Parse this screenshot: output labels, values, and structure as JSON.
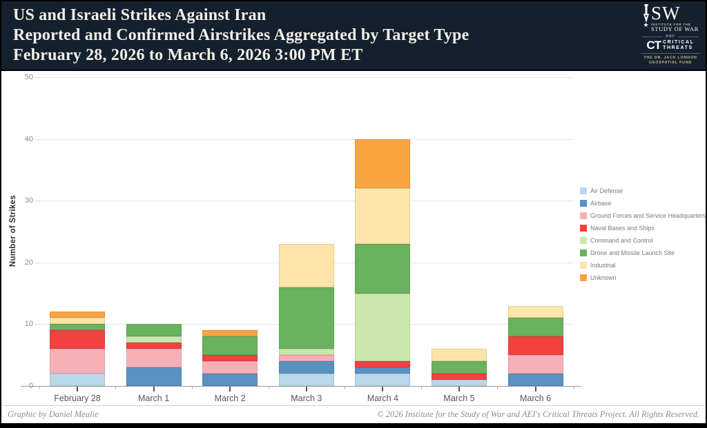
{
  "header": {
    "title_line1": "US and Israeli Strikes Against Iran",
    "title_line2": "Reported and Confirmed Airstrikes Aggregated by Target Type",
    "title_line3": "February 28, 2026 to March 6, 2026 3:00 PM ET"
  },
  "logo": {
    "isw_letters": "SW",
    "institute_line1": "INSTITUTE FOR THE",
    "institute_line2": "STUDY OF WAR",
    "and_text": "AND",
    "ct_abbrev": "CT",
    "ct_line1": "CRITICAL",
    "ct_line2": "THREATS",
    "fund_line1": "THE DR. JACK LONDON",
    "fund_line2": "GEOSPATIAL FUND"
  },
  "colors": {
    "header_bg": "#14202d",
    "header_text": "#f2efe9",
    "fund_gold": "#c3b289"
  },
  "chart_data": {
    "type": "bar",
    "stacked": true,
    "title": "US and Israeli Strikes Against Iran — Reported and Confirmed Airstrikes Aggregated by Target Type",
    "categories": [
      "February 28",
      "March 1",
      "March 2",
      "March 3",
      "March 4",
      "March 5",
      "March 6"
    ],
    "series": [
      {
        "name": "Air Defense",
        "color": "#b9d9ea",
        "values": [
          2,
          0,
          0,
          2,
          2,
          1,
          0
        ]
      },
      {
        "name": "Airbase",
        "color": "#5a91c1",
        "values": [
          0,
          3,
          2,
          2,
          1,
          0,
          2
        ]
      },
      {
        "name": "Ground Forces and Service Headquarters",
        "color": "#f7b0b7",
        "values": [
          4,
          3,
          2,
          1,
          0,
          0,
          3
        ]
      },
      {
        "name": "Naval Bases and Ships",
        "color": "#f2413e",
        "values": [
          3,
          1,
          1,
          0,
          1,
          1,
          3
        ]
      },
      {
        "name": "Command and Control",
        "color": "#cbe7ad",
        "values": [
          0,
          1,
          0,
          1,
          11,
          0,
          0
        ]
      },
      {
        "name": "Drone and Missile Launch Site",
        "color": "#6ab160",
        "values": [
          1,
          2,
          3,
          10,
          8,
          2,
          3
        ]
      },
      {
        "name": "Industrial",
        "color": "#fde5aa",
        "values": [
          1,
          0,
          0,
          7,
          9,
          2,
          2
        ]
      },
      {
        "name": "Unknown",
        "color": "#f9a441",
        "values": [
          1,
          0,
          1,
          0,
          8,
          0,
          0
        ]
      }
    ],
    "totals": [
      12,
      10,
      9,
      23,
      40,
      6,
      13
    ],
    "xlabel": "",
    "ylabel": "Number of Strikes",
    "yticks": [
      0,
      10,
      20,
      30,
      40,
      50
    ],
    "ylim": [
      0,
      50
    ],
    "grid": "horizontal",
    "legend_position": "right"
  },
  "footer": {
    "credit": "Graphic by Daniel Mealie",
    "copyright": "© 2026 Institute for the Study of War and AEI's Critical Threats Project. All Rights Reserved."
  }
}
